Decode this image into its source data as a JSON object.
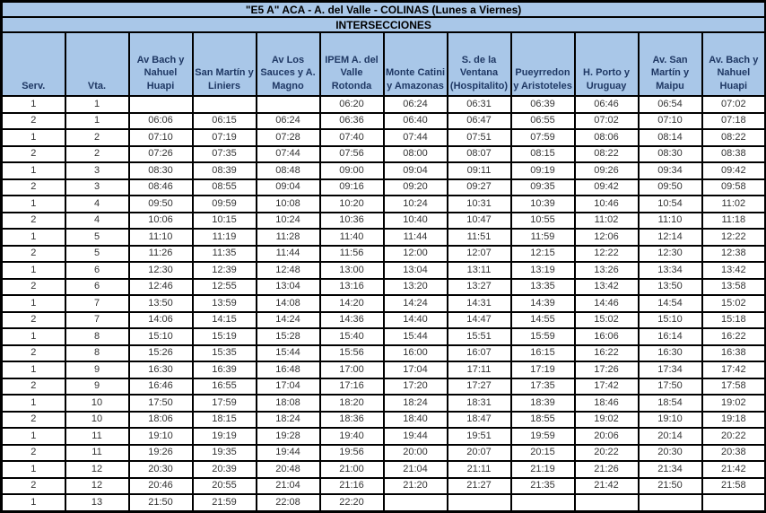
{
  "title": "\"E5 A\" ACA - A. del Valle - COLINAS (Lunes a Viernes)",
  "subtitle": "INTERSECCIONES",
  "colors": {
    "header_bg": "#a9c7e8",
    "header_text": "#1f3864",
    "title_text": "#000000",
    "cell_text": "#333333",
    "border": "#000000",
    "cell_bg": "#ffffff"
  },
  "table": {
    "headers": [
      "Serv.",
      "Vta.",
      "Av Bach y Nahuel Huapi",
      "San Martín y Liniers",
      "Av Los Sauces y A. Magno",
      "IPEM A. del Valle Rotonda",
      "Monte Catini y Amazonas",
      "S. de la Ventana (Hospitalito)",
      "Pueyrredon y Aristoteles",
      "H. Porto y Uruguay",
      "Av. San Martín y Maipu",
      "Av. Bach y Nahuel Huapi"
    ],
    "rows": [
      [
        "1",
        "1",
        "",
        "",
        "",
        "06:20",
        "06:24",
        "06:31",
        "06:39",
        "06:46",
        "06:54",
        "07:02"
      ],
      [
        "2",
        "1",
        "06:06",
        "06:15",
        "06:24",
        "06:36",
        "06:40",
        "06:47",
        "06:55",
        "07:02",
        "07:10",
        "07:18"
      ],
      [
        "1",
        "2",
        "07:10",
        "07:19",
        "07:28",
        "07:40",
        "07:44",
        "07:51",
        "07:59",
        "08:06",
        "08:14",
        "08:22"
      ],
      [
        "2",
        "2",
        "07:26",
        "07:35",
        "07:44",
        "07:56",
        "08:00",
        "08:07",
        "08:15",
        "08:22",
        "08:30",
        "08:38"
      ],
      [
        "1",
        "3",
        "08:30",
        "08:39",
        "08:48",
        "09:00",
        "09:04",
        "09:11",
        "09:19",
        "09:26",
        "09:34",
        "09:42"
      ],
      [
        "2",
        "3",
        "08:46",
        "08:55",
        "09:04",
        "09:16",
        "09:20",
        "09:27",
        "09:35",
        "09:42",
        "09:50",
        "09:58"
      ],
      [
        "1",
        "4",
        "09:50",
        "09:59",
        "10:08",
        "10:20",
        "10:24",
        "10:31",
        "10:39",
        "10:46",
        "10:54",
        "11:02"
      ],
      [
        "2",
        "4",
        "10:06",
        "10:15",
        "10:24",
        "10:36",
        "10:40",
        "10:47",
        "10:55",
        "11:02",
        "11:10",
        "11:18"
      ],
      [
        "1",
        "5",
        "11:10",
        "11:19",
        "11:28",
        "11:40",
        "11:44",
        "11:51",
        "11:59",
        "12:06",
        "12:14",
        "12:22"
      ],
      [
        "2",
        "5",
        "11:26",
        "11:35",
        "11:44",
        "11:56",
        "12:00",
        "12:07",
        "12:15",
        "12:22",
        "12:30",
        "12:38"
      ],
      [
        "1",
        "6",
        "12:30",
        "12:39",
        "12:48",
        "13:00",
        "13:04",
        "13:11",
        "13:19",
        "13:26",
        "13:34",
        "13:42"
      ],
      [
        "2",
        "6",
        "12:46",
        "12:55",
        "13:04",
        "13:16",
        "13:20",
        "13:27",
        "13:35",
        "13:42",
        "13:50",
        "13:58"
      ],
      [
        "1",
        "7",
        "13:50",
        "13:59",
        "14:08",
        "14:20",
        "14:24",
        "14:31",
        "14:39",
        "14:46",
        "14:54",
        "15:02"
      ],
      [
        "2",
        "7",
        "14:06",
        "14:15",
        "14:24",
        "14:36",
        "14:40",
        "14:47",
        "14:55",
        "15:02",
        "15:10",
        "15:18"
      ],
      [
        "1",
        "8",
        "15:10",
        "15:19",
        "15:28",
        "15:40",
        "15:44",
        "15:51",
        "15:59",
        "16:06",
        "16:14",
        "16:22"
      ],
      [
        "2",
        "8",
        "15:26",
        "15:35",
        "15:44",
        "15:56",
        "16:00",
        "16:07",
        "16:15",
        "16:22",
        "16:30",
        "16:38"
      ],
      [
        "1",
        "9",
        "16:30",
        "16:39",
        "16:48",
        "17:00",
        "17:04",
        "17:11",
        "17:19",
        "17:26",
        "17:34",
        "17:42"
      ],
      [
        "2",
        "9",
        "16:46",
        "16:55",
        "17:04",
        "17:16",
        "17:20",
        "17:27",
        "17:35",
        "17:42",
        "17:50",
        "17:58"
      ],
      [
        "1",
        "10",
        "17:50",
        "17:59",
        "18:08",
        "18:20",
        "18:24",
        "18:31",
        "18:39",
        "18:46",
        "18:54",
        "19:02"
      ],
      [
        "2",
        "10",
        "18:06",
        "18:15",
        "18:24",
        "18:36",
        "18:40",
        "18:47",
        "18:55",
        "19:02",
        "19:10",
        "19:18"
      ],
      [
        "1",
        "11",
        "19:10",
        "19:19",
        "19:28",
        "19:40",
        "19:44",
        "19:51",
        "19:59",
        "20:06",
        "20:14",
        "20:22"
      ],
      [
        "2",
        "11",
        "19:26",
        "19:35",
        "19:44",
        "19:56",
        "20:00",
        "20:07",
        "20:15",
        "20:22",
        "20:30",
        "20:38"
      ],
      [
        "1",
        "12",
        "20:30",
        "20:39",
        "20:48",
        "21:00",
        "21:04",
        "21:11",
        "21:19",
        "21:26",
        "21:34",
        "21:42"
      ],
      [
        "2",
        "12",
        "20:46",
        "20:55",
        "21:04",
        "21:16",
        "21:20",
        "21:27",
        "21:35",
        "21:42",
        "21:50",
        "21:58"
      ],
      [
        "1",
        "13",
        "21:50",
        "21:59",
        "22:08",
        "22:20",
        "",
        "",
        "",
        "",
        "",
        ""
      ]
    ]
  }
}
